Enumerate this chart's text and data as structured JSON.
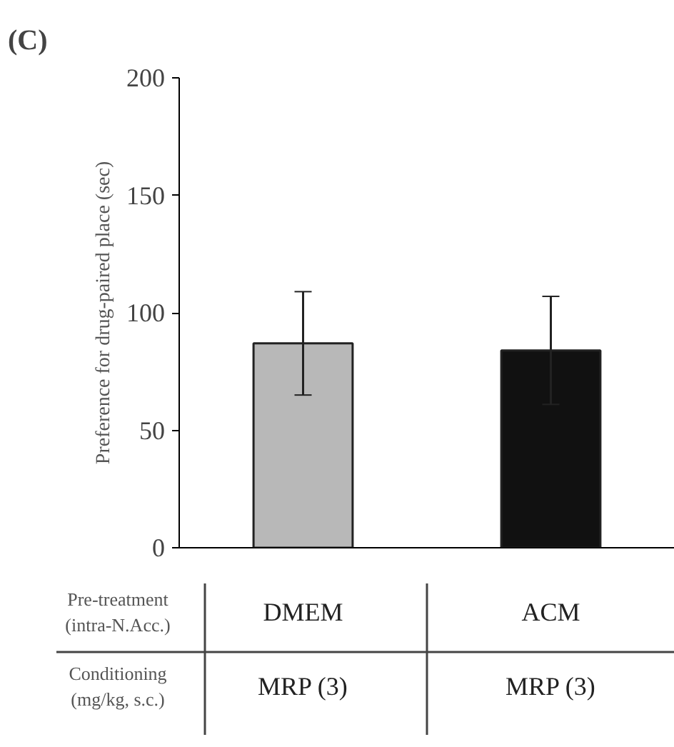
{
  "chart_data": {
    "type": "bar",
    "title": "(C)",
    "ylabel": "Preference for drug-paired place (sec)",
    "categories": [
      "DMEM",
      "ACM"
    ],
    "values": [
      87,
      84
    ],
    "colors": [
      "#b8b8b8",
      "#111111"
    ],
    "errors": [
      22,
      23
    ],
    "ylim": [
      0,
      200
    ],
    "yticks": [
      0,
      50,
      100,
      150,
      200
    ],
    "grid": false,
    "annotations": [
      "Pre-treatment\n(intra-N.Acc.)",
      "Conditioning\n(mg/kg, s.c.)",
      "MRP (3)",
      "MRP (3)"
    ]
  }
}
